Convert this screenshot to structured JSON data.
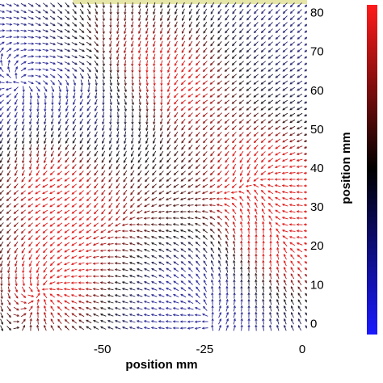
{
  "chart_data": {
    "type": "vector-field",
    "xlabel": "position mm",
    "ylabel": "position mm",
    "x_ticks": [
      "-50",
      "-25",
      "0"
    ],
    "y_ticks": [
      "0",
      "10",
      "20",
      "30",
      "40",
      "50",
      "60",
      "70",
      "80"
    ],
    "xlim": [
      -75,
      0
    ],
    "ylim": [
      -2,
      82
    ],
    "grid": false,
    "colorbar": {
      "placement": "right",
      "colors": [
        "#1a1aff",
        "#000000",
        "#ff1a1a"
      ],
      "ticks": []
    },
    "arrow_color_scale": [
      "#2a2a9a",
      "#1a1a1a",
      "#e01818"
    ],
    "regions": [
      {
        "kind": "high",
        "x": -10,
        "y": 38
      },
      {
        "kind": "high",
        "x": -5,
        "y": 20
      },
      {
        "kind": "high",
        "x": -33,
        "y": 62
      },
      {
        "kind": "high",
        "x": -63,
        "y": 40
      },
      {
        "kind": "high",
        "x": -63,
        "y": 10
      },
      {
        "kind": "medium",
        "x": -50,
        "y": 74
      },
      {
        "kind": "medium",
        "x": -42,
        "y": 28
      },
      {
        "kind": "low",
        "x": -70,
        "y": 60
      },
      {
        "kind": "low",
        "x": -25,
        "y": 5
      },
      {
        "kind": "low",
        "x": -50,
        "y": 54
      }
    ]
  }
}
